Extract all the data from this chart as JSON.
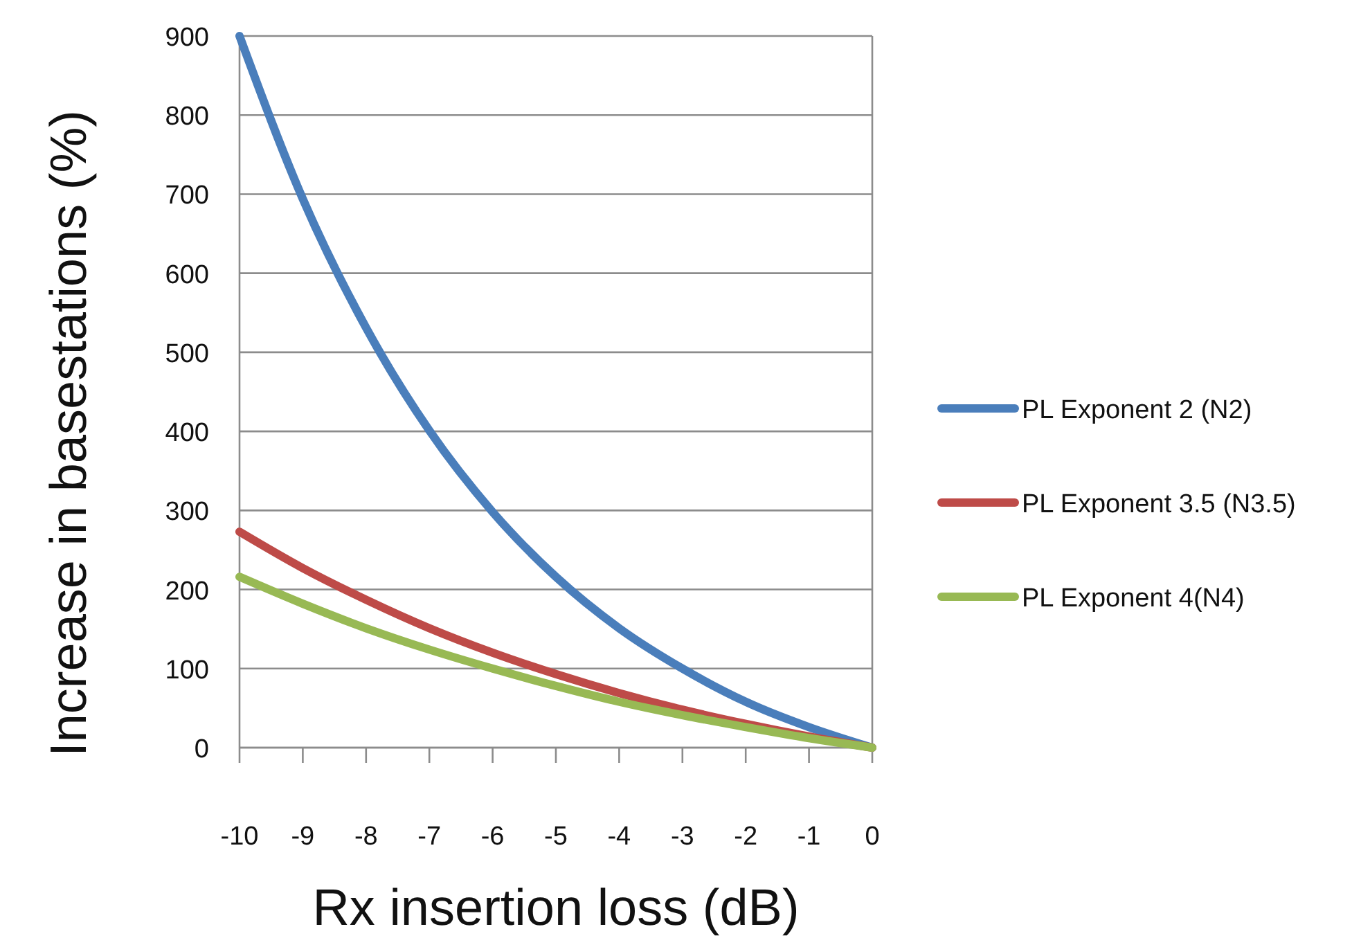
{
  "chart_data": {
    "type": "line",
    "xlabel": "Rx insertion loss (dB)",
    "ylabel": "Increase in basestations (%)",
    "x": [
      -10,
      -9,
      -8,
      -7,
      -6,
      -5,
      -4,
      -3,
      -2,
      -1,
      0
    ],
    "series": [
      {
        "name": "PL Exponent 2 (N2)",
        "color": "#4a7ebb",
        "values": [
          900,
          694,
          531,
          401,
          298,
          216,
          151,
          100,
          58,
          26,
          0
        ]
      },
      {
        "name": "PL Exponent 3.5 (N3.5)",
        "color": "#be4b48",
        "values": [
          273,
          227,
          187,
          151,
          120,
          93,
          69,
          48,
          30,
          14,
          0
        ]
      },
      {
        "name": "PL Exponent 4(N4)",
        "color": "#98b954",
        "values": [
          216,
          182,
          151,
          124,
          100,
          78,
          58,
          41,
          26,
          12,
          0
        ]
      }
    ],
    "xlim": [
      -10,
      0
    ],
    "xticks": [
      -10,
      -9,
      -8,
      -7,
      -6,
      -5,
      -4,
      -3,
      -2,
      -1,
      0
    ],
    "ylim": [
      0,
      900
    ],
    "yticks": [
      0,
      100,
      200,
      300,
      400,
      500,
      600,
      700,
      800,
      900
    ],
    "grid": "y",
    "legend": "right",
    "marker": "none",
    "line_style": "solid"
  }
}
